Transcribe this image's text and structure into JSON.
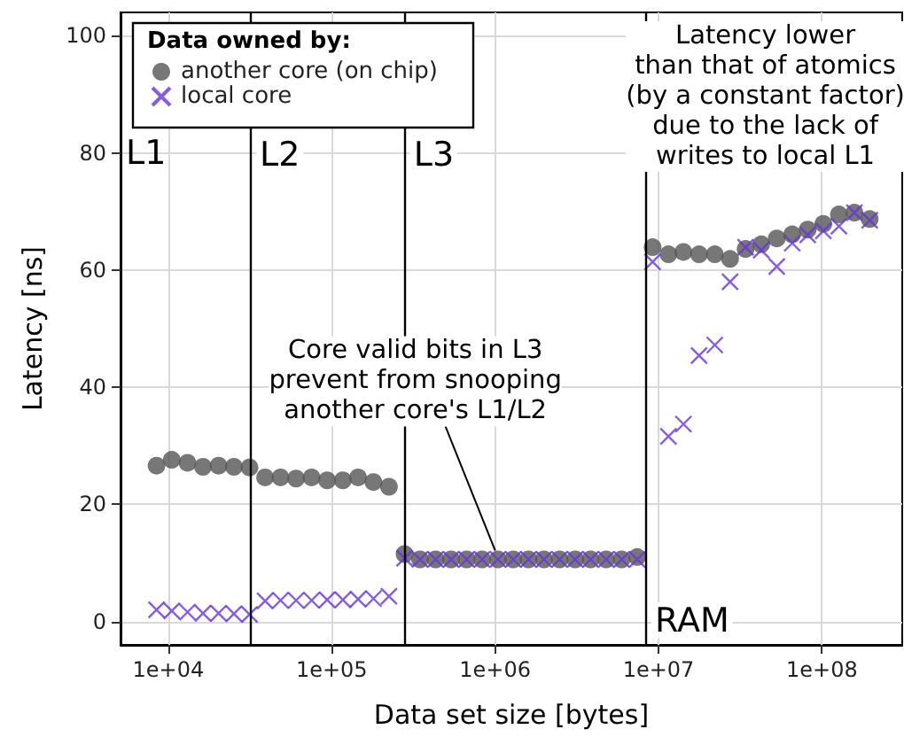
{
  "chart_data": {
    "type": "scatter",
    "xlabel": "Data set size [bytes]",
    "ylabel": "Latency [ns]",
    "legend_title": "Data owned by:",
    "legend": "top left",
    "grid": true,
    "log": "x",
    "xlim": [
      5100,
      310000000
    ],
    "ylim": [
      -4,
      104
    ],
    "xticks": [
      {
        "value": 10000,
        "label": "1e+04"
      },
      {
        "value": 100000,
        "label": "1e+05"
      },
      {
        "value": 1000000,
        "label": "1e+06"
      },
      {
        "value": 10000000,
        "label": "1e+07"
      },
      {
        "value": 100000000,
        "label": "1e+08"
      }
    ],
    "yticks": [
      0,
      20,
      40,
      60,
      80,
      100
    ],
    "x": [
      8470,
      10500,
      13100,
      16300,
      20300,
      25200,
      31400,
      39100,
      48600,
      60500,
      75300,
      93700,
      117000,
      145000,
      180000,
      224000,
      279000,
      347000,
      432000,
      538000,
      669000,
      832000,
      1040000,
      1290000,
      1600000,
      1990000,
      2480000,
      3090000,
      3840000,
      4780000,
      5950000,
      7400000,
      9200000,
      11500000,
      14200000,
      17700000,
      22100000,
      27400000,
      34100000,
      42500000,
      52900000,
      65800000,
      81800000,
      102000000,
      127000000,
      158000000,
      196000000
    ],
    "series": [
      {
        "name": "another core (on chip)",
        "color": "#555555",
        "marker": "circle",
        "values": [
          26.6,
          27.6,
          27.1,
          26.4,
          26.6,
          26.4,
          26.3,
          24.6,
          24.6,
          24.4,
          24.6,
          24.1,
          24.1,
          24.6,
          23.8,
          23.0,
          11.5,
          10.6,
          10.6,
          10.6,
          10.6,
          10.6,
          10.6,
          10.6,
          10.6,
          10.6,
          10.6,
          10.6,
          10.6,
          10.6,
          10.6,
          11.0,
          63.9,
          62.7,
          63.1,
          62.7,
          62.7,
          61.9,
          63.6,
          64.4,
          65.4,
          66.1,
          66.9,
          67.9,
          69.5,
          69.8,
          68.7
        ]
      },
      {
        "name": "local core",
        "color": "#6633dd",
        "marker": "cross",
        "values": [
          2.0,
          1.8,
          1.6,
          1.4,
          1.4,
          1.3,
          1.2,
          3.5,
          3.6,
          3.6,
          3.6,
          3.7,
          3.7,
          3.8,
          3.9,
          4.3,
          10.8,
          10.6,
          10.6,
          10.6,
          10.6,
          10.6,
          10.6,
          10.6,
          10.6,
          10.6,
          10.6,
          10.6,
          10.6,
          10.6,
          10.6,
          10.6,
          61.4,
          31.6,
          33.7,
          45.4,
          47.2,
          58.0,
          63.9,
          63.4,
          60.6,
          64.6,
          66.0,
          66.7,
          67.5,
          69.8,
          68.5
        ]
      }
    ],
    "ref_lines": [
      {
        "axis": "x",
        "value": 32000,
        "label": "L2"
      },
      {
        "axis": "x",
        "value": 280000,
        "label": "L3"
      },
      {
        "axis": "x",
        "value": 8400000,
        "label": "RAM"
      }
    ],
    "annotations": [
      "L1",
      {
        "text": "Core valid bits in L3\nprevent from snooping\nanother core's L1/L2",
        "x": 1000000,
        "y": 10.6
      },
      "Latency lower\nthan that of atomics\n(by a constant factor)\ndue to the lack of\nwrites to local L1"
    ]
  }
}
